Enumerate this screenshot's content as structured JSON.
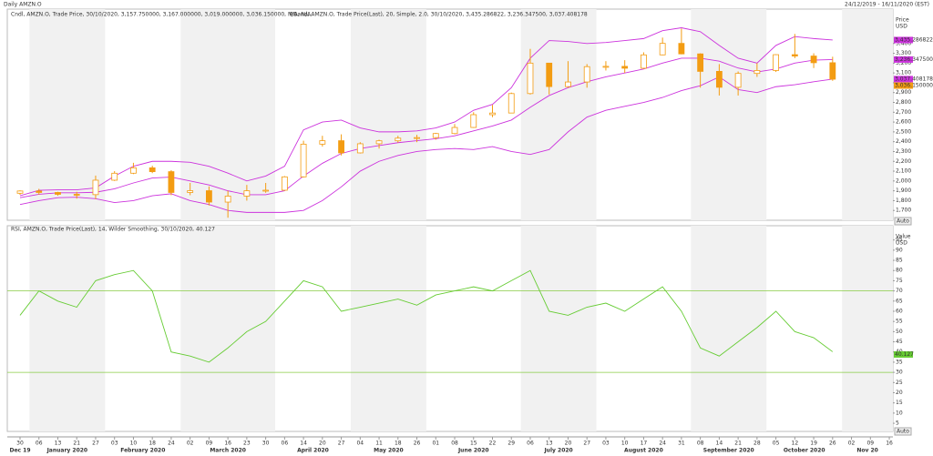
{
  "header": {
    "title": "Daily AMZN.O",
    "range": "24/12/2019 - 16/11/2020 (EST)"
  },
  "chart_data": [
    {
      "type": "candlestick",
      "legend": [
        "Cndl, AMZN.O, Trade Price, 30/10/2020, 3,157.750000, 3,167.000000, 3,019.000000, 3,036.150000, N/A, N/A,",
        "BBand, AMZN.O, Trade Price(Last), 20, Simple, 2.0, 30/10/2020, 3,435.286822, 3,236.347500, 3,037.408178"
      ],
      "ylabel": "Price",
      "unit": "USD",
      "button": "Auto",
      "color": "#f39c12",
      "categories": [
        "30",
        "06",
        "13",
        "21",
        "27",
        "03",
        "10",
        "18",
        "24",
        "02",
        "09",
        "16",
        "23",
        "30",
        "06",
        "14",
        "20",
        "27",
        "04",
        "11",
        "18",
        "26",
        "01",
        "08",
        "15",
        "22",
        "29",
        "06",
        "13",
        "20",
        "27",
        "03",
        "10",
        "17",
        "24",
        "31",
        "08",
        "14",
        "21",
        "28",
        "05",
        "12",
        "19",
        "26",
        "02",
        "09",
        "16"
      ],
      "months": [
        "Dec 19",
        "January 2020",
        "February 2020",
        "March 2020",
        "April 2020",
        "May 2020",
        "June 2020",
        "July 2020",
        "August 2020",
        "September 2020",
        "October 2020",
        "Nov 20"
      ],
      "open": [
        1875,
        1898,
        1883,
        1864,
        1861,
        2008,
        2079,
        2134,
        2095,
        1883,
        1901,
        1785,
        1846,
        1900,
        1906,
        2042,
        2375,
        2410,
        2286,
        2379,
        2409,
        2436,
        2442,
        2483,
        2545,
        2675,
        2692,
        2890,
        3200,
        2961,
        3008,
        3164,
        3167,
        3148,
        3284,
        3401,
        3294,
        3116,
        2954,
        3095,
        3125,
        3286,
        3272,
        3204,
        null,
        null,
        null
      ],
      "high": [
        1905,
        1920,
        1890,
        1890,
        2055,
        2100,
        2185,
        2155,
        2110,
        1980,
        1945,
        1900,
        1960,
        1980,
        2050,
        2410,
        2460,
        2475,
        2395,
        2420,
        2460,
        2470,
        2490,
        2580,
        2700,
        2775,
        2900,
        3345,
        3200,
        3220,
        3190,
        3220,
        3230,
        3310,
        3460,
        3552,
        3300,
        3190,
        3115,
        3200,
        3290,
        3497,
        3300,
        3265,
        null,
        null,
        null
      ],
      "low": [
        1860,
        1860,
        1850,
        1820,
        1815,
        2000,
        2070,
        2080,
        1855,
        1855,
        1750,
        1626,
        1800,
        1880,
        1900,
        2035,
        2350,
        2260,
        2280,
        2330,
        2390,
        2395,
        2420,
        2475,
        2540,
        2650,
        2690,
        2880,
        2880,
        2950,
        2950,
        3125,
        3100,
        3140,
        3280,
        3290,
        2950,
        2870,
        2870,
        3060,
        3110,
        3250,
        3150,
        3020,
        null,
        null,
        null
      ],
      "close": [
        1898,
        1883,
        1864,
        1861,
        2008,
        2079,
        2134,
        2095,
        1883,
        1901,
        1785,
        1846,
        1900,
        1906,
        2042,
        2375,
        2410,
        2286,
        2379,
        2409,
        2436,
        2442,
        2483,
        2545,
        2675,
        2692,
        2890,
        3200,
        2961,
        3008,
        3164,
        3167,
        3148,
        3284,
        3401,
        3294,
        3116,
        2954,
        3095,
        3125,
        3286,
        3272,
        3204,
        3036.15,
        null,
        null,
        null
      ],
      "close_labels": [
        null,
        null,
        null,
        null,
        null,
        null,
        null,
        null,
        null,
        null,
        null,
        null,
        null,
        null,
        null,
        null,
        null,
        null,
        null,
        null,
        null,
        null,
        null,
        null,
        null,
        null,
        null,
        null,
        null,
        null,
        null,
        null,
        null,
        null,
        null,
        null,
        null,
        null,
        null,
        null,
        null,
        null,
        null,
        "3,036.150000",
        null,
        null,
        null
      ],
      "series": [
        {
          "color": "#cc33dd",
          "values": [
            1850,
            1905,
            1910,
            1910,
            1930,
            2050,
            2150,
            2200,
            2200,
            2190,
            2150,
            2080,
            2000,
            2050,
            2150,
            2520,
            2600,
            2620,
            2540,
            2500,
            2500,
            2510,
            2540,
            2600,
            2720,
            2780,
            2950,
            3250,
            3430,
            3420,
            3400,
            3410,
            3430,
            3450,
            3530,
            3560,
            3520,
            3380,
            3250,
            3200,
            3380,
            3470,
            3450,
            3435.286822,
            null,
            null,
            null
          ],
          "value_labels": [
            null,
            null,
            null,
            null,
            null,
            null,
            null,
            null,
            null,
            null,
            null,
            null,
            null,
            null,
            null,
            null,
            null,
            null,
            null,
            null,
            null,
            null,
            null,
            null,
            null,
            null,
            null,
            null,
            null,
            null,
            null,
            null,
            null,
            null,
            null,
            null,
            null,
            null,
            null,
            null,
            null,
            null,
            null,
            "3,435.286822",
            null,
            null,
            null
          ]
        },
        {
          "color": "#cc33dd",
          "values": [
            1830,
            1865,
            1880,
            1880,
            1885,
            1920,
            1980,
            2030,
            2040,
            2000,
            1960,
            1900,
            1860,
            1860,
            1900,
            2050,
            2180,
            2280,
            2330,
            2360,
            2390,
            2410,
            2430,
            2460,
            2510,
            2560,
            2620,
            2750,
            2870,
            2950,
            3010,
            3060,
            3100,
            3140,
            3200,
            3250,
            3250,
            3220,
            3150,
            3110,
            3140,
            3200,
            3230,
            3236.3475,
            null,
            null,
            null
          ],
          "value_labels": [
            null,
            null,
            null,
            null,
            null,
            null,
            null,
            null,
            null,
            null,
            null,
            null,
            null,
            null,
            null,
            null,
            null,
            null,
            null,
            null,
            null,
            null,
            null,
            null,
            null,
            null,
            null,
            null,
            null,
            null,
            null,
            null,
            null,
            null,
            null,
            null,
            null,
            null,
            null,
            null,
            null,
            null,
            null,
            "3,236.347500",
            null,
            null,
            null
          ]
        },
        {
          "color": "#cc33dd",
          "values": [
            1760,
            1800,
            1830,
            1835,
            1820,
            1780,
            1800,
            1850,
            1870,
            1800,
            1760,
            1700,
            1680,
            1680,
            1680,
            1700,
            1800,
            1940,
            2100,
            2200,
            2260,
            2300,
            2320,
            2330,
            2320,
            2350,
            2300,
            2270,
            2320,
            2500,
            2650,
            2720,
            2760,
            2800,
            2850,
            2920,
            2970,
            3060,
            2930,
            2900,
            2960,
            2980,
            3010,
            3037.408178,
            null,
            null,
            null
          ],
          "value_labels": [
            null,
            null,
            null,
            null,
            null,
            null,
            null,
            null,
            null,
            null,
            null,
            null,
            null,
            null,
            null,
            null,
            null,
            null,
            null,
            null,
            null,
            null,
            null,
            null,
            null,
            null,
            null,
            null,
            null,
            null,
            null,
            null,
            null,
            null,
            null,
            null,
            null,
            null,
            null,
            null,
            null,
            null,
            null,
            "3,037.408178",
            null,
            null,
            null
          ]
        }
      ],
      "ylim": [
        1600,
        3750
      ],
      "yticks": [
        {
          "value": 1700,
          "label": "1,700"
        },
        {
          "value": 1800,
          "label": "1,800"
        },
        {
          "value": 1900,
          "label": "1,900"
        },
        {
          "value": 2000,
          "label": "2,000"
        },
        {
          "value": 2100,
          "label": "2,100"
        },
        {
          "value": 2200,
          "label": "2,200"
        },
        {
          "value": 2300,
          "label": "2,300"
        },
        {
          "value": 2400,
          "label": "2,400"
        },
        {
          "value": 2500,
          "label": "2,500"
        },
        {
          "value": 2600,
          "label": "2,600"
        },
        {
          "value": 2700,
          "label": "2,700"
        },
        {
          "value": 2800,
          "label": "2,800"
        },
        {
          "value": 2900,
          "label": "2,900"
        },
        {
          "value": 3000,
          "label": "3,000"
        },
        {
          "value": 3100,
          "label": "3,100"
        },
        {
          "value": 3200,
          "label": "3,200"
        },
        {
          "value": 3300,
          "label": "3,300"
        },
        {
          "value": 3400,
          "label": "3,400"
        }
      ]
    },
    {
      "type": "line",
      "legend": [
        "RSI, AMZN.O, Trade Price(Last), 14, Wilder Smoothing, 30/10/2020, 40.127"
      ],
      "ylabel": "Value",
      "unit": "USD",
      "button": "Auto",
      "series": [
        {
          "color": "#66cc33",
          "values": [
            58,
            70,
            65,
            62,
            75,
            78,
            80,
            70,
            40,
            38,
            35,
            42,
            50,
            55,
            65,
            75,
            72,
            60,
            62,
            64,
            66,
            63,
            68,
            70,
            72,
            70,
            75,
            80,
            60,
            58,
            62,
            64,
            60,
            66,
            72,
            60,
            42,
            38,
            45,
            52,
            60,
            50,
            47,
            40.127,
            null,
            null,
            null
          ]
        }
      ],
      "hlines": [
        70,
        30
      ],
      "hline_color": "#88cc44",
      "ylim": [
        1,
        102
      ],
      "yticks": [
        5,
        10,
        15,
        20,
        25,
        30,
        35,
        40,
        45,
        50,
        55,
        60,
        65,
        70,
        75,
        80,
        85,
        90,
        95
      ]
    }
  ]
}
